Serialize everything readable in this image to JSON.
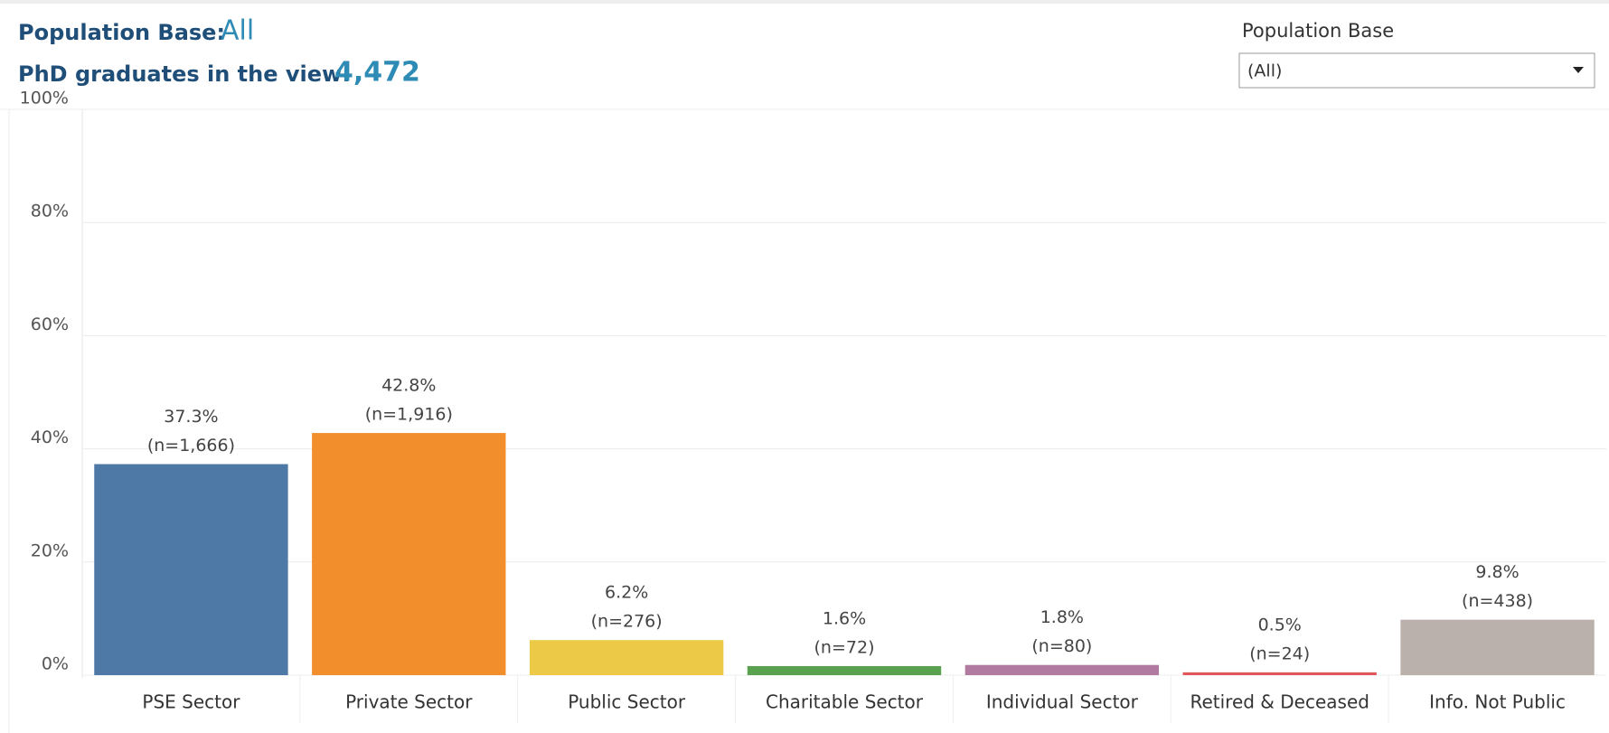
{
  "header": {
    "base_label": "Population Base:",
    "base_value": "All",
    "count_label": "PhD graduates in the view:",
    "count_value": "4,472"
  },
  "filter": {
    "title": "Population Base",
    "selected": "(All)"
  },
  "chart_data": {
    "type": "bar",
    "categories": [
      "PSE Sector",
      "Private Sector",
      "Public Sector",
      "Charitable Sector",
      "Individual Sector",
      "Retired & Deceased",
      "Info. Not Public"
    ],
    "values": [
      37.3,
      42.8,
      6.2,
      1.6,
      1.8,
      0.5,
      9.8
    ],
    "value_labels": [
      "37.3%",
      "42.8%",
      "6.2%",
      "1.6%",
      "1.8%",
      "0.5%",
      "9.8%"
    ],
    "count_labels": [
      "(n=1,666)",
      "(n=1,916)",
      "(n=276)",
      "(n=72)",
      "(n=80)",
      "(n=24)",
      "(n=438)"
    ],
    "colors": [
      "#4e79a7",
      "#f28e2b",
      "#edc948",
      "#59a14f",
      "#b07aa1",
      "#e15759",
      "#bab0ac"
    ],
    "ylim": [
      0,
      100
    ],
    "yticks": [
      {
        "value": 0,
        "label": "0%"
      },
      {
        "value": 20,
        "label": "20%"
      },
      {
        "value": 40,
        "label": "40%"
      },
      {
        "value": 60,
        "label": "60%"
      },
      {
        "value": 80,
        "label": "80%"
      },
      {
        "value": 100,
        "label": "100%"
      }
    ],
    "grid": true
  }
}
